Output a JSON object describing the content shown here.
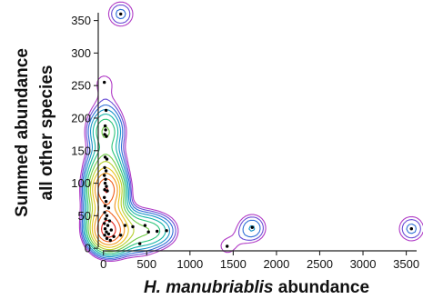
{
  "chart_data": {
    "type": "contour-scatter",
    "title": "",
    "xlabel_italic": "H. manubriablis",
    "xlabel_rest": " abundance",
    "ylabel_line1": "Summed abundance",
    "ylabel_line2": "all other species",
    "xlim": [
      -60,
      3620
    ],
    "ylim": [
      -4,
      362
    ],
    "x_ticks": [
      0,
      500,
      1000,
      1500,
      2000,
      2500,
      3000,
      3500
    ],
    "y_ticks": [
      0,
      50,
      100,
      150,
      200,
      250,
      300,
      350
    ],
    "grid": false,
    "legend": "none",
    "contour_colors": [
      "#b13cc6",
      "#6a4fd6",
      "#2f6fd6",
      "#1c95c9",
      "#16b5a6",
      "#2cc47a",
      "#71cc46",
      "#b6cf2e",
      "#e7c521",
      "#f29a1f",
      "#f0601e",
      "#e3231c"
    ],
    "points": [
      {
        "x": 10,
        "y": 255
      },
      {
        "x": 30,
        "y": 212
      },
      {
        "x": 20,
        "y": 188
      },
      {
        "x": 25,
        "y": 182
      },
      {
        "x": 15,
        "y": 175
      },
      {
        "x": 35,
        "y": 172
      },
      {
        "x": 20,
        "y": 140
      },
      {
        "x": 40,
        "y": 137
      },
      {
        "x": 15,
        "y": 124
      },
      {
        "x": 30,
        "y": 119
      },
      {
        "x": 10,
        "y": 112
      },
      {
        "x": 25,
        "y": 106
      },
      {
        "x": 20,
        "y": 100
      },
      {
        "x": 35,
        "y": 95
      },
      {
        "x": 15,
        "y": 90
      },
      {
        "x": 45,
        "y": 88
      },
      {
        "x": 10,
        "y": 78
      },
      {
        "x": 30,
        "y": 72
      },
      {
        "x": 20,
        "y": 65
      },
      {
        "x": 60,
        "y": 62
      },
      {
        "x": 15,
        "y": 55
      },
      {
        "x": 40,
        "y": 50
      },
      {
        "x": 25,
        "y": 45
      },
      {
        "x": 70,
        "y": 42
      },
      {
        "x": 10,
        "y": 38
      },
      {
        "x": 50,
        "y": 35
      },
      {
        "x": 20,
        "y": 30
      },
      {
        "x": 90,
        "y": 28
      },
      {
        "x": 35,
        "y": 25
      },
      {
        "x": 60,
        "y": 22
      },
      {
        "x": 15,
        "y": 20
      },
      {
        "x": 120,
        "y": 18
      },
      {
        "x": 40,
        "y": 15
      },
      {
        "x": 80,
        "y": 12
      },
      {
        "x": 200,
        "y": 20
      },
      {
        "x": 250,
        "y": 35
      },
      {
        "x": 340,
        "y": 33
      },
      {
        "x": 420,
        "y": 7
      },
      {
        "x": 480,
        "y": 35
      },
      {
        "x": 520,
        "y": 25
      },
      {
        "x": 620,
        "y": 26
      },
      {
        "x": 730,
        "y": 27
      },
      {
        "x": 1430,
        "y": 3
      },
      {
        "x": 1720,
        "y": 32
      },
      {
        "x": 3560,
        "y": 30
      },
      {
        "x": 200,
        "y": 360
      }
    ],
    "density_peaks": [
      {
        "x": 40,
        "y": 90,
        "weight": 6.0
      },
      {
        "x": 40,
        "y": 25,
        "weight": 4.0
      },
      {
        "x": 1720,
        "y": 30,
        "weight": 0.9
      },
      {
        "x": 3560,
        "y": 30,
        "weight": 0.6
      },
      {
        "x": 200,
        "y": 360,
        "weight": 0.6
      }
    ]
  }
}
